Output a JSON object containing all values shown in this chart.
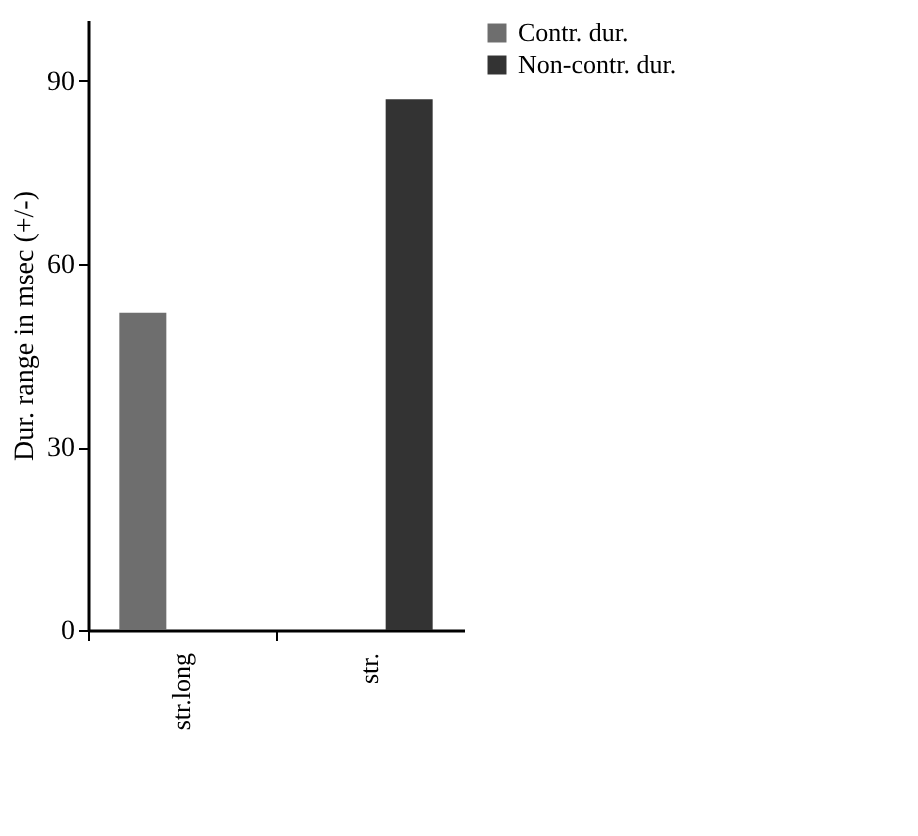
{
  "chart_data": {
    "type": "bar",
    "ylabel": "Dur. range in msec (+/-)",
    "categories": [
      "str.long",
      "str."
    ],
    "series": [
      {
        "name": "Contr. dur.",
        "color": "#6e6e6e",
        "values": [
          52,
          null
        ]
      },
      {
        "name": "Non-contr. dur.",
        "color": "#333333",
        "values": [
          null,
          87
        ]
      }
    ],
    "ylim": [
      0,
      100
    ],
    "yticks": [
      0,
      30,
      60,
      90
    ],
    "grid": false,
    "legend": "right"
  }
}
